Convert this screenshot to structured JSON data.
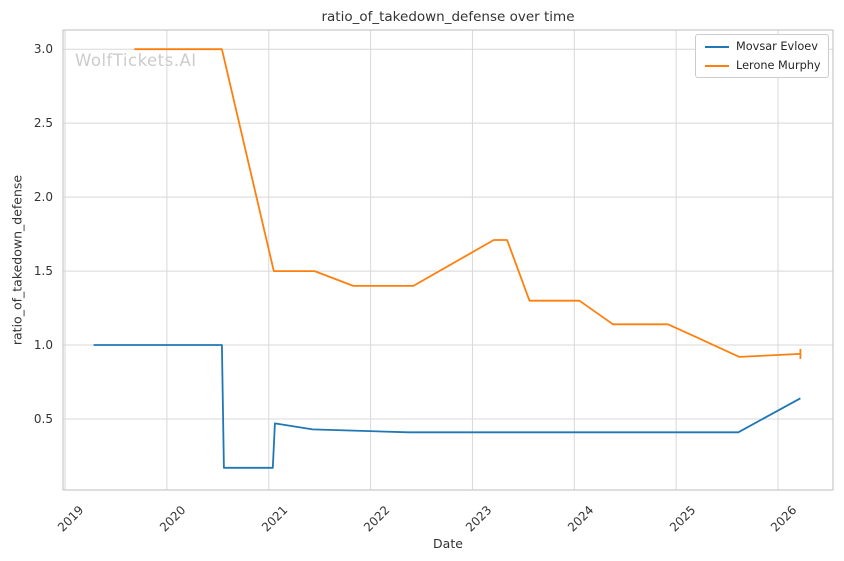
{
  "watermark": "WolfTickets.AI",
  "colors": {
    "background": "#ffffff",
    "grid": "#d8d8d8",
    "spine": "#c9c9c9",
    "text": "#333333",
    "watermark": "#cccccc"
  },
  "chart_data": {
    "type": "line",
    "title": "ratio_of_takedown_defense over time",
    "xlabel": "Date",
    "ylabel": "ratio_of_takedown_defense",
    "xlim": [
      2018.98,
      2026.54
    ],
    "ylim": [
      0.02,
      3.13
    ],
    "x_ticks": [
      2019,
      2020,
      2021,
      2022,
      2023,
      2024,
      2025,
      2026
    ],
    "y_ticks": [
      0.5,
      1.0,
      1.5,
      2.0,
      2.5,
      3.0
    ],
    "grid": true,
    "legend_position": "upper right",
    "series": [
      {
        "name": "Movsar Evloev",
        "color": "#1f77b4",
        "end_tick": false,
        "points": [
          [
            2019.28,
            1.0
          ],
          [
            2020.54,
            1.0
          ],
          [
            2020.56,
            0.17
          ],
          [
            2021.04,
            0.17
          ],
          [
            2021.06,
            0.47
          ],
          [
            2021.43,
            0.43
          ],
          [
            2022.37,
            0.41
          ],
          [
            2025.61,
            0.41
          ],
          [
            2026.22,
            0.64
          ]
        ]
      },
      {
        "name": "Lerone Murphy",
        "color": "#ff7f0e",
        "end_tick": true,
        "points": [
          [
            2019.68,
            3.0
          ],
          [
            2020.54,
            3.0
          ],
          [
            2021.05,
            1.5
          ],
          [
            2021.45,
            1.5
          ],
          [
            2021.83,
            1.4
          ],
          [
            2022.42,
            1.4
          ],
          [
            2023.21,
            1.71
          ],
          [
            2023.34,
            1.71
          ],
          [
            2023.56,
            1.3
          ],
          [
            2024.05,
            1.3
          ],
          [
            2024.38,
            1.14
          ],
          [
            2024.92,
            1.14
          ],
          [
            2025.21,
            1.05
          ],
          [
            2025.62,
            0.92
          ],
          [
            2026.22,
            0.94
          ]
        ]
      }
    ]
  }
}
